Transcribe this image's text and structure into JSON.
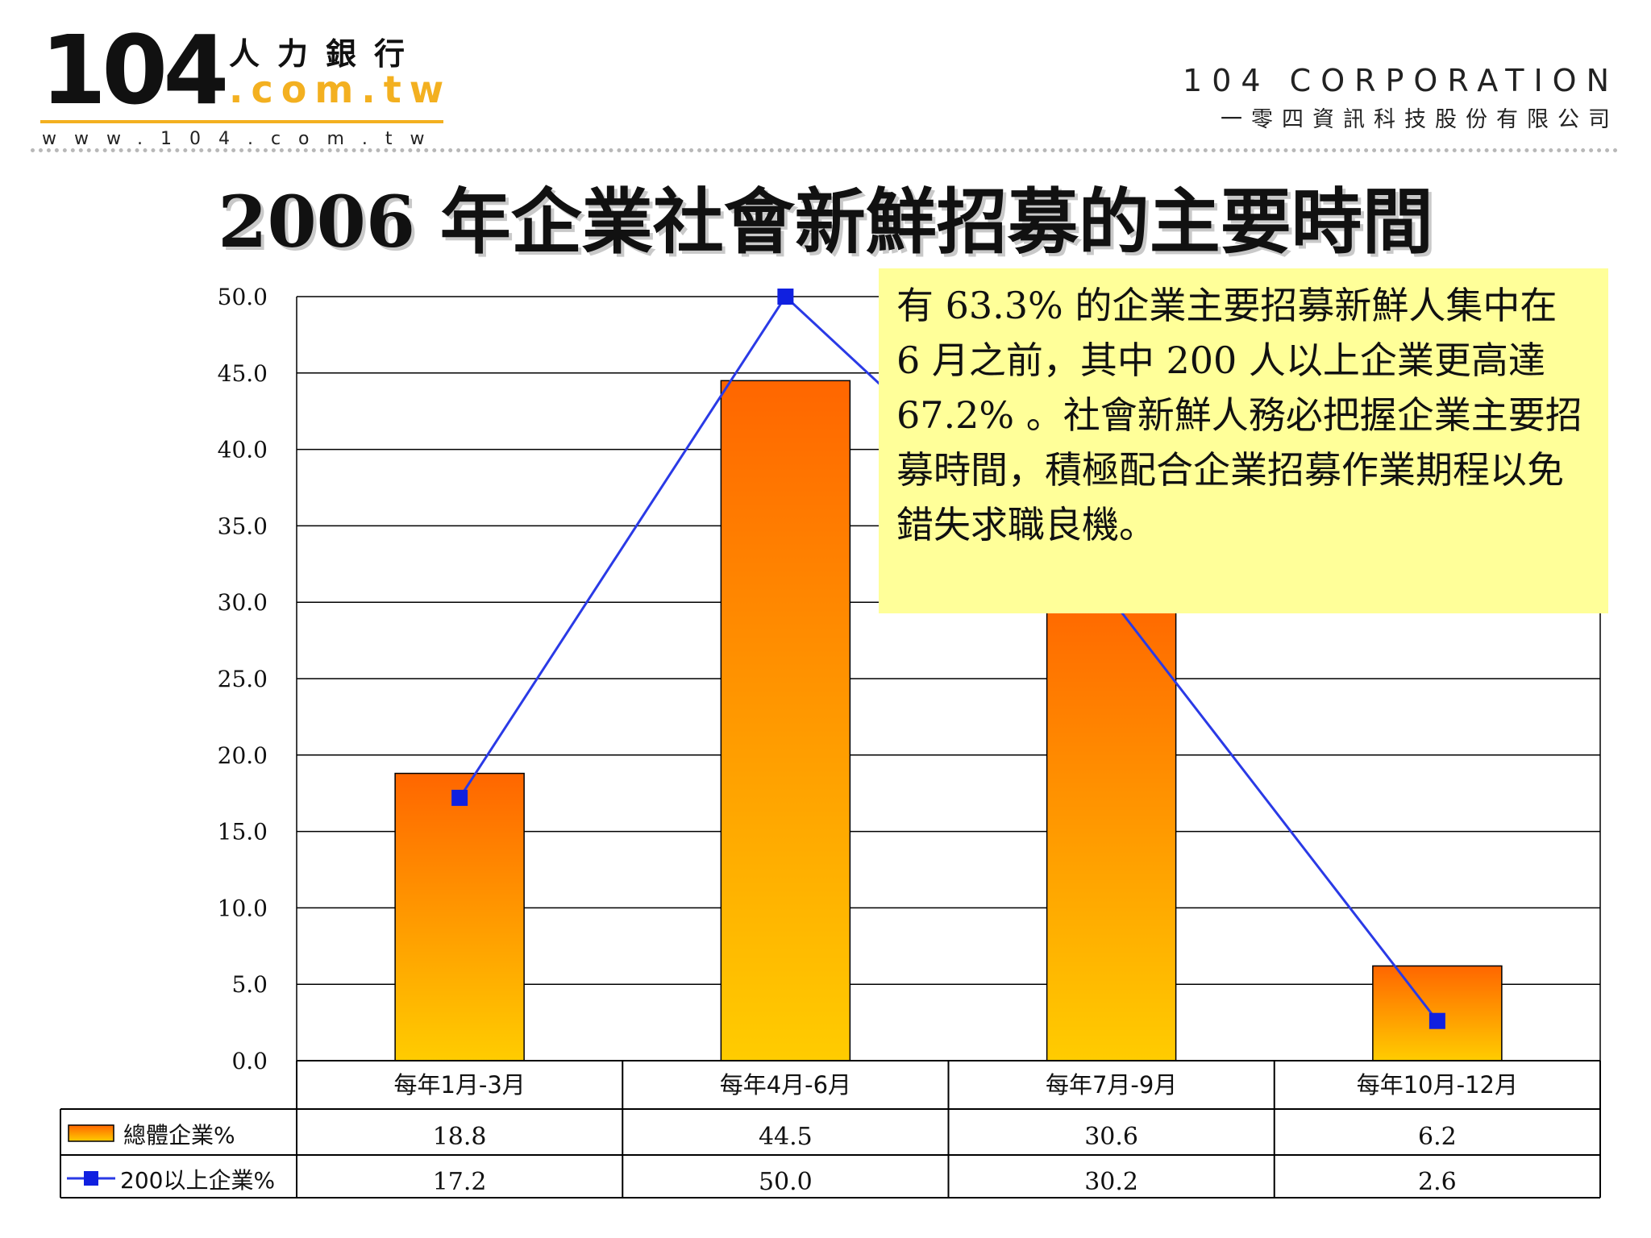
{
  "header": {
    "logo_number": "104",
    "logo_chinese": "人力銀行",
    "logo_domain": ".com.tw",
    "logo_url": "www.104.com.tw",
    "corp_english": "104 CORPORATION",
    "corp_chinese": "一零四資訊科技股份有限公司"
  },
  "colors": {
    "bar_top": "#ff6600",
    "bar_bottom": "#ffcc00",
    "line": "#2a3ae6",
    "marker": "#1020e0",
    "callout_bg": "#ffff99",
    "logo_accent": "#f3b020"
  },
  "callout": {
    "text": "有 63.3% 的企業主要招募新鮮人集中在 6 月之前，其中 200 人以上企業更高達 67.2% 。社會新鮮人務必把握企業主要招募時間，積極配合企業招募作業期程以免錯失求職良機。"
  },
  "chart_data": {
    "type": "bar",
    "title": "2006 年企業社會新鮮招募的主要時間",
    "categories": [
      "每年1月-3月",
      "每年4月-6月",
      "每年7月-9月",
      "每年10月-12月"
    ],
    "series": [
      {
        "name": "總體企業%",
        "kind": "bar",
        "values": [
          18.8,
          44.5,
          30.6,
          6.2
        ],
        "labels": [
          "18.8",
          "44.5",
          "30.6",
          "6.2"
        ]
      },
      {
        "name": "200以上企業%",
        "kind": "line",
        "values": [
          17.2,
          50.0,
          30.2,
          2.6
        ],
        "labels": [
          "17.2",
          "50.0",
          "30.2",
          "2.6"
        ]
      }
    ],
    "ylim": [
      0,
      50
    ],
    "yticks": [
      "0.0",
      "5.0",
      "10.0",
      "15.0",
      "20.0",
      "25.0",
      "30.0",
      "35.0",
      "40.0",
      "45.0",
      "50.0"
    ],
    "grid": true,
    "legend": "data-table"
  }
}
